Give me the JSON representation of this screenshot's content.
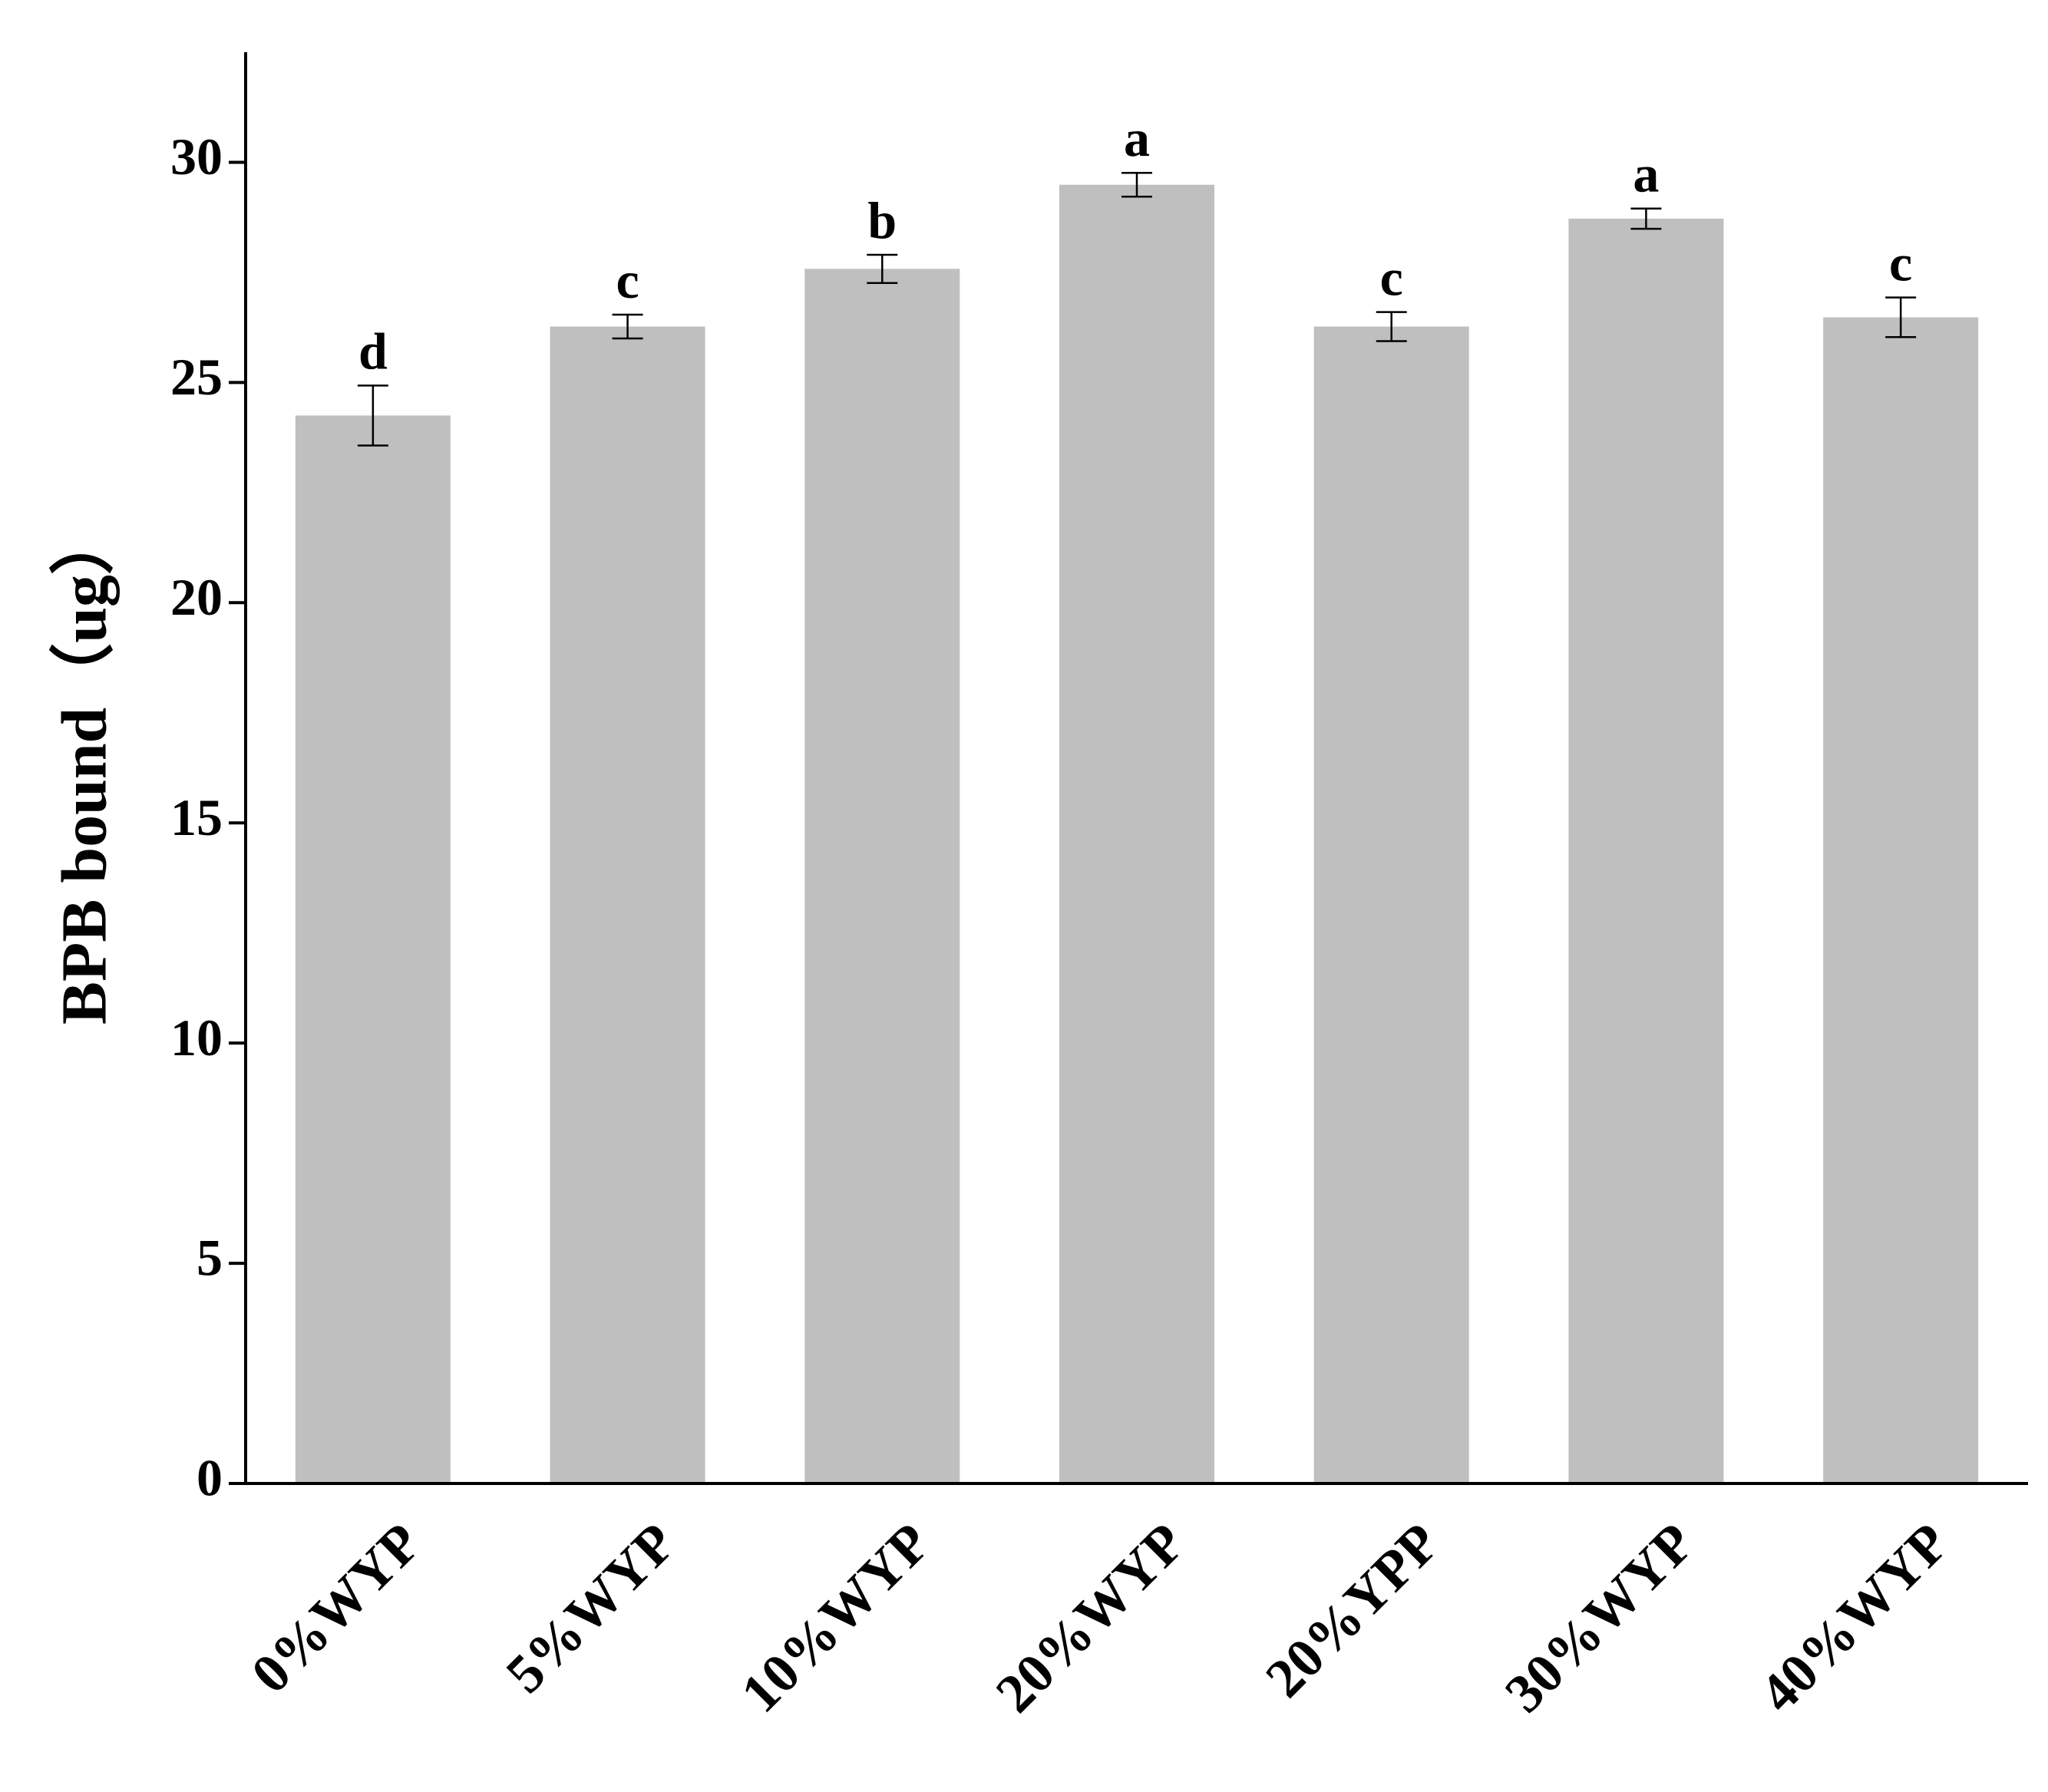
{
  "chart_data": {
    "type": "bar",
    "y_label": "BPB bound（ug）",
    "categories": [
      "0%WYP",
      "5%WYP",
      "10%WYP",
      "20%WYP",
      "20%YPP",
      "30%WYP",
      "40%WYP"
    ],
    "values": [
      24.25,
      26.27,
      27.58,
      29.49,
      26.27,
      28.72,
      26.48
    ],
    "errors": [
      0.68,
      0.27,
      0.32,
      0.27,
      0.33,
      0.23,
      0.45
    ],
    "annotations": [
      "d",
      "c",
      "b",
      "a",
      "c",
      "a",
      "c"
    ],
    "color": "#bfbfbf",
    "ylim": [
      0,
      32.5
    ],
    "yticks": [
      0,
      5,
      10,
      15,
      20,
      25,
      30
    ],
    "grid": false
  }
}
